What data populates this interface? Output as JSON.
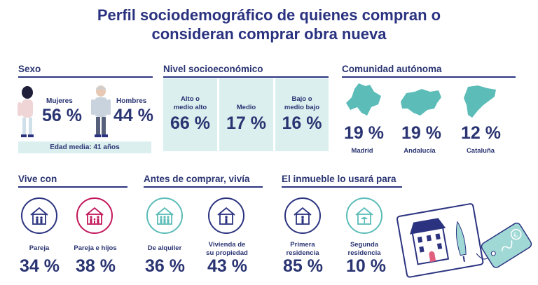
{
  "title_line1": "Perfil sociodemográfico de quienes compran o",
  "title_line2": "consideran comprar obra nueva",
  "sexo": {
    "title": "Sexo",
    "mujeres_label": "Mujeres",
    "mujeres_value": "56 %",
    "hombres_label": "Hombres",
    "hombres_value": "44 %",
    "edad_media": "Edad media: 41 años"
  },
  "nivel": {
    "title": "Nivel socioeconómico",
    "items": [
      {
        "label_l1": "Alto o",
        "label_l2": "medio alto",
        "value": "66 %"
      },
      {
        "label_l1": "",
        "label_l2": "Medio",
        "value": "17 %"
      },
      {
        "label_l1": "Bajo o",
        "label_l2": "medio bajo",
        "value": "16 %"
      }
    ]
  },
  "comunidad": {
    "title": "Comunidad autónoma",
    "items": [
      {
        "value": "19 %",
        "label": "Madrid"
      },
      {
        "value": "19 %",
        "label": "Andalucía"
      },
      {
        "value": "12 %",
        "label": "Cataluña"
      }
    ]
  },
  "vive_con": {
    "title": "Vive con",
    "items": [
      {
        "label": "Pareja",
        "value": "34 %"
      },
      {
        "label": "Pareja e hijos",
        "value": "38 %"
      }
    ]
  },
  "antes": {
    "title": "Antes de comprar, vivía",
    "items": [
      {
        "label_l1": "De alquiler",
        "label_l2": "",
        "value": "36 %"
      },
      {
        "label_l1": "Vivienda de",
        "label_l2": "su propiedad",
        "value": "43 %"
      }
    ]
  },
  "uso": {
    "title": "El inmueble lo usará para",
    "items": [
      {
        "label_l1": "Primera",
        "label_l2": "residencia",
        "value": "85 %"
      },
      {
        "label_l1": "Segunda",
        "label_l2": "residencia",
        "value": "10 %"
      }
    ]
  },
  "colors": {
    "navy": "#2b3380",
    "teal": "#5bbcb8",
    "pink": "#c2185b",
    "teal_light": "#dcefef"
  }
}
